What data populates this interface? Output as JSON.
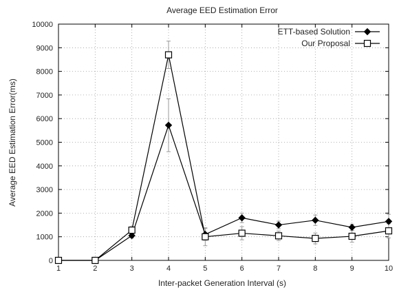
{
  "chart_data": {
    "type": "line",
    "title": "Average EED Estimation Error",
    "xlabel": "Inter-packet Generation Interval (s)",
    "ylabel": "Average EED Estimation Error(ms)",
    "xlim": [
      1,
      10
    ],
    "ylim": [
      0,
      10000
    ],
    "x_ticks": [
      1,
      2,
      3,
      4,
      5,
      6,
      7,
      8,
      9,
      10
    ],
    "y_ticks": [
      0,
      1000,
      2000,
      3000,
      4000,
      5000,
      6000,
      7000,
      8000,
      9000,
      10000
    ],
    "grid": true,
    "legend_position": "top-right",
    "x": [
      1,
      2,
      3,
      4,
      5,
      6,
      7,
      8,
      9,
      10
    ],
    "series": [
      {
        "name": "ETT-based Solution",
        "marker": "filled-diamond",
        "color": "#000000",
        "values": [
          0,
          0,
          1050,
          5720,
          1100,
          1800,
          1500,
          1700,
          1400,
          1650
        ],
        "error": [
          0,
          0,
          100,
          1120,
          250,
          200,
          160,
          220,
          130,
          300
        ]
      },
      {
        "name": "Our Proposal",
        "marker": "open-square",
        "color": "#000000",
        "values": [
          0,
          0,
          1280,
          8700,
          1000,
          1150,
          1040,
          930,
          1020,
          1250
        ],
        "error": [
          0,
          0,
          150,
          580,
          380,
          280,
          200,
          230,
          250,
          300
        ]
      }
    ],
    "errorbar_color": "#9a9a9a"
  }
}
